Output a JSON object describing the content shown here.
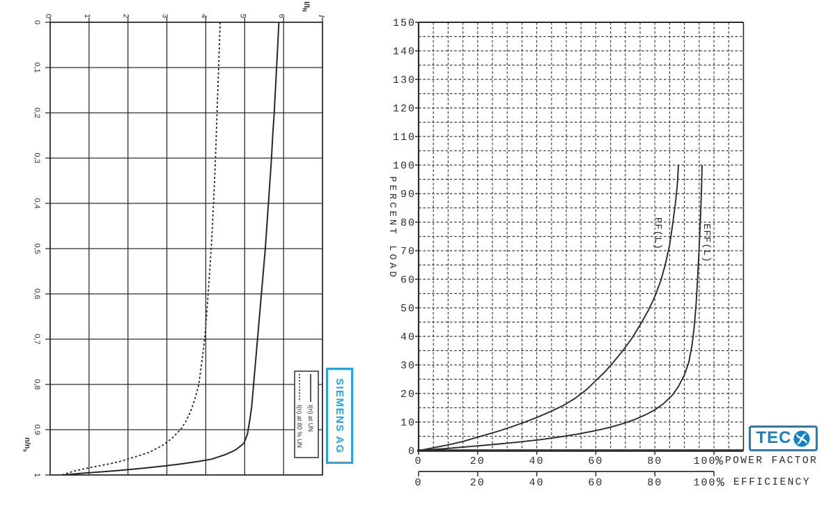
{
  "page": {
    "background": "#ffffff",
    "ink_color": "#2b2b2b"
  },
  "left_chart": {
    "brand": "SIEMENS AG",
    "brand_color": "#2aa3dc",
    "axis_title_y": {
      "main": "I/I",
      "sub": "N"
    },
    "axis_end_label": "I",
    "axis_title_x": {
      "main": "n/n",
      "sub": "s"
    },
    "y_tick_labels": [
      "0",
      "1",
      "2",
      "3",
      "4",
      "5",
      "6"
    ],
    "x_tick_labels": [
      "0",
      "0,1",
      "0,2",
      "0,3",
      "0,4",
      "0,5",
      "0,6",
      "0,7",
      "0,8",
      "0,9",
      "1"
    ],
    "legend": [
      {
        "label": "I(n) at UN",
        "style": "solid"
      },
      {
        "label": "I(n) at 80 % UN",
        "style": "dashed"
      }
    ]
  },
  "right_chart": {
    "brand": "TECO",
    "brand_text": "TEC",
    "brand_color": "#1581c5",
    "ylabel": "PERCENT LOAD",
    "xlabel_primary": "POWER FACTOR",
    "xlabel_secondary": "EFFICIENCY",
    "percent_sign": "%",
    "y_tick_labels": [
      "0",
      "10",
      "20",
      "30",
      "40",
      "50",
      "60",
      "70",
      "80",
      "90",
      "100",
      "110",
      "120",
      "130",
      "140",
      "150"
    ],
    "x_tick_labels": [
      "0",
      "20",
      "40",
      "60",
      "80",
      "100"
    ],
    "curve_labels": [
      "PF(L)",
      "EFF(L)"
    ]
  },
  "chart_data": [
    {
      "id": "siemens-current-vs-speed",
      "type": "line",
      "orientation": "rotated-90-clockwise",
      "xlabel": "n/ns",
      "ylabel": "I/IN",
      "xlim": [
        0,
        1
      ],
      "ylim": [
        0,
        7
      ],
      "x_ticks": [
        0,
        0.1,
        0.2,
        0.3,
        0.4,
        0.5,
        0.6,
        0.7,
        0.8,
        0.9,
        1
      ],
      "y_ticks": [
        0,
        1,
        2,
        3,
        4,
        5,
        6
      ],
      "grid": "solid",
      "legend_position": "top-right",
      "series": [
        {
          "name": "I(n) at UN",
          "style": "solid",
          "points": [
            [
              0,
              5.88
            ],
            [
              0.05,
              5.85
            ],
            [
              0.1,
              5.82
            ],
            [
              0.15,
              5.79
            ],
            [
              0.2,
              5.76
            ],
            [
              0.25,
              5.72
            ],
            [
              0.3,
              5.69
            ],
            [
              0.35,
              5.65
            ],
            [
              0.4,
              5.61
            ],
            [
              0.45,
              5.57
            ],
            [
              0.5,
              5.53
            ],
            [
              0.55,
              5.48
            ],
            [
              0.6,
              5.43
            ],
            [
              0.65,
              5.38
            ],
            [
              0.7,
              5.33
            ],
            [
              0.75,
              5.28
            ],
            [
              0.8,
              5.23
            ],
            [
              0.85,
              5.18
            ],
            [
              0.88,
              5.13
            ],
            [
              0.91,
              5.07
            ],
            [
              0.93,
              4.98
            ],
            [
              0.945,
              4.76
            ],
            [
              0.955,
              4.5
            ],
            [
              0.965,
              4.15
            ],
            [
              0.97,
              3.82
            ],
            [
              0.975,
              3.42
            ],
            [
              0.98,
              2.95
            ],
            [
              0.985,
              2.4
            ],
            [
              0.99,
              1.78
            ],
            [
              0.993,
              1.32
            ],
            [
              0.996,
              0.85
            ],
            [
              1,
              0.35
            ]
          ]
        },
        {
          "name": "I(n) at 80 % UN",
          "style": "dashed",
          "points": [
            [
              0,
              4.37
            ],
            [
              0.1,
              4.33
            ],
            [
              0.2,
              4.29
            ],
            [
              0.3,
              4.25
            ],
            [
              0.4,
              4.2
            ],
            [
              0.5,
              4.14
            ],
            [
              0.6,
              4.06
            ],
            [
              0.65,
              4.02
            ],
            [
              0.7,
              3.97
            ],
            [
              0.75,
              3.9
            ],
            [
              0.8,
              3.82
            ],
            [
              0.83,
              3.73
            ],
            [
              0.86,
              3.61
            ],
            [
              0.88,
              3.5
            ],
            [
              0.9,
              3.35
            ],
            [
              0.92,
              3.12
            ],
            [
              0.935,
              2.88
            ],
            [
              0.95,
              2.55
            ],
            [
              0.96,
              2.18
            ],
            [
              0.97,
              1.8
            ],
            [
              0.975,
              1.55
            ],
            [
              0.98,
              1.25
            ],
            [
              0.985,
              0.95
            ],
            [
              0.99,
              0.68
            ],
            [
              0.995,
              0.48
            ],
            [
              1,
              0.3
            ]
          ]
        }
      ]
    },
    {
      "id": "teco-load-vs-pf-eff",
      "type": "line",
      "xlabel": "POWER FACTOR / EFFICIENCY (%)",
      "ylabel": "PERCENT LOAD",
      "xlim": [
        0,
        110
      ],
      "ylim": [
        0,
        150
      ],
      "x_ticks": [
        0,
        20,
        40,
        60,
        80,
        100
      ],
      "y_ticks": [
        0,
        10,
        20,
        30,
        40,
        50,
        60,
        70,
        80,
        90,
        100,
        110,
        120,
        130,
        140,
        150
      ],
      "grid": "dashed",
      "grid_step": 5,
      "series": [
        {
          "name": "PF(L)",
          "style": "solid",
          "points": [
            [
              0,
              0
            ],
            [
              5,
              1
            ],
            [
              10,
              2
            ],
            [
              15,
              3.2
            ],
            [
              21,
              5
            ],
            [
              27,
              6.8
            ],
            [
              32,
              8.5
            ],
            [
              36,
              10
            ],
            [
              41,
              12
            ],
            [
              45,
              13.8
            ],
            [
              49,
              15.8
            ],
            [
              53,
              18.3
            ],
            [
              57,
              21.5
            ],
            [
              60,
              24.5
            ],
            [
              63,
              27.5
            ],
            [
              66,
              31
            ],
            [
              69,
              34.8
            ],
            [
              72,
              39
            ],
            [
              75,
              44
            ],
            [
              78,
              49.5
            ],
            [
              80,
              54
            ],
            [
              82,
              59.5
            ],
            [
              83.5,
              65
            ],
            [
              85,
              72
            ],
            [
              86,
              79
            ],
            [
              87,
              87
            ],
            [
              87.6,
              93
            ],
            [
              88,
              100
            ]
          ]
        },
        {
          "name": "EFF(L)",
          "style": "solid",
          "points": [
            [
              0,
              0
            ],
            [
              8,
              0.6
            ],
            [
              16,
              1.3
            ],
            [
              26,
              2.2
            ],
            [
              34,
              3
            ],
            [
              41,
              3.8
            ],
            [
              48,
              4.8
            ],
            [
              54,
              5.8
            ],
            [
              60,
              7
            ],
            [
              65,
              8.2
            ],
            [
              69,
              9.4
            ],
            [
              73,
              10.8
            ],
            [
              77,
              12.6
            ],
            [
              80,
              14.3
            ],
            [
              83,
              16.5
            ],
            [
              86,
              19.5
            ],
            [
              88,
              22.5
            ],
            [
              90,
              26.5
            ],
            [
              91.5,
              31
            ],
            [
              92.6,
              37
            ],
            [
              93.4,
              44
            ],
            [
              94,
              52
            ],
            [
              94.5,
              61
            ],
            [
              95,
              71
            ],
            [
              95.5,
              83
            ],
            [
              95.8,
              92
            ],
            [
              96,
              100
            ]
          ]
        }
      ]
    }
  ]
}
